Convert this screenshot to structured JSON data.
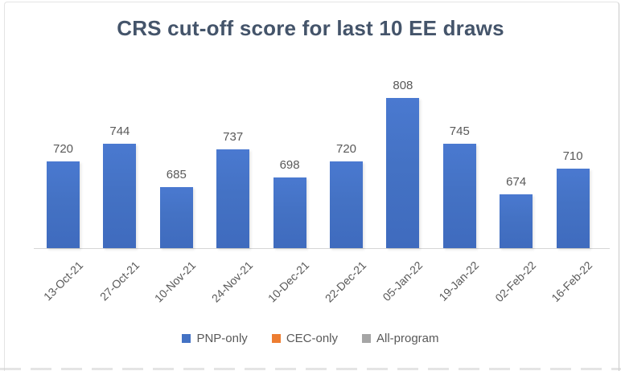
{
  "chart_data": {
    "type": "bar",
    "title": "CRS cut-off score for last 10 EE draws",
    "categories": [
      "13-Oct-21",
      "27-Oct-21",
      "10-Nov-21",
      "24-Nov-21",
      "10-Dec-21",
      "22-Dec-21",
      "05-Jan-22",
      "19-Jan-22",
      "02-Feb-22",
      "16-Feb-22"
    ],
    "series": [
      {
        "name": "PNP-only",
        "color": "#4472C4",
        "values": [
          720,
          744,
          685,
          737,
          698,
          720,
          808,
          745,
          674,
          710
        ]
      },
      {
        "name": "CEC-only",
        "color": "#ED7D31",
        "values": []
      },
      {
        "name": "All-program",
        "color": "#A5A5A5",
        "values": []
      }
    ],
    "data_labels_shown": true,
    "xlabel": "",
    "ylabel": "",
    "ylim": [
      600,
      850
    ],
    "grid": false,
    "value_axis_visible": false,
    "legend_position": "bottom"
  },
  "colors": {
    "title_text": "#44546A",
    "label_text": "#595959",
    "axis_line": "#D6D6D6",
    "bar_blue": "#4472C4",
    "legend_orange": "#ED7D31",
    "legend_gray": "#A5A5A5"
  }
}
